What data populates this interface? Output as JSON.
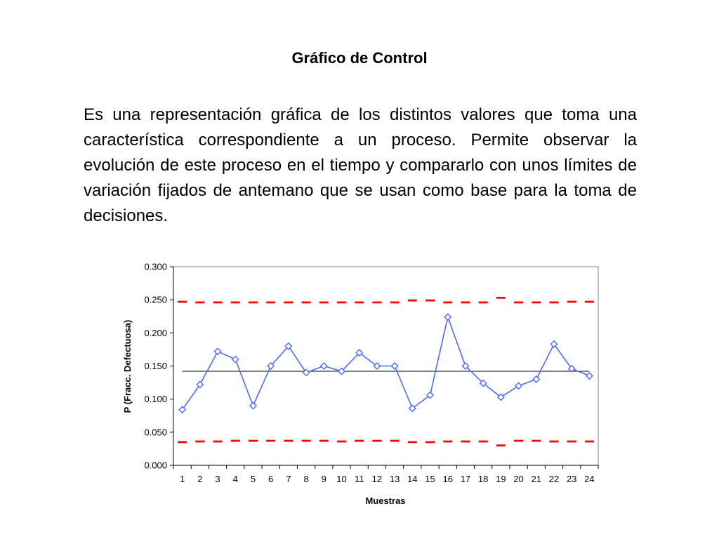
{
  "slide": {
    "title": "Gráfico de Control",
    "body": "Es una representación gráfica de los distintos valores que toma una característica correspondiente a un proceso. Permite observar la evolución de este proceso en el tiempo y compararlo con unos límites de variación fijados de antemano que se usan como base para la toma de decisiones."
  },
  "chart_data": {
    "type": "line",
    "xlabel": "Muestras",
    "ylabel": "P (Fracc. Defectuosa)",
    "x": [
      1,
      2,
      3,
      4,
      5,
      6,
      7,
      8,
      9,
      10,
      11,
      12,
      13,
      14,
      15,
      16,
      17,
      18,
      19,
      20,
      21,
      22,
      23,
      24
    ],
    "ylim": [
      0,
      0.3
    ],
    "yticks": [
      "0.000",
      "0.050",
      "0.100",
      "0.150",
      "0.200",
      "0.250",
      "0.300"
    ],
    "grid": false,
    "legend": "none",
    "series": [
      {
        "values": [
          0.084,
          0.122,
          0.172,
          0.16,
          0.09,
          0.15,
          0.18,
          0.14,
          0.15,
          0.142,
          0.17,
          0.15,
          0.15,
          0.086,
          0.106,
          0.224,
          0.15,
          0.124,
          0.103,
          0.12,
          0.13,
          0.183,
          0.146,
          0.135
        ],
        "color": "#4d6bff"
      }
    ],
    "center_line": {
      "value": 0.142,
      "color": "#000000"
    },
    "upper_limit": {
      "values": [
        0.247,
        0.246,
        0.246,
        0.246,
        0.246,
        0.246,
        0.246,
        0.246,
        0.246,
        0.246,
        0.246,
        0.246,
        0.246,
        0.249,
        0.249,
        0.246,
        0.246,
        0.246,
        0.253,
        0.246,
        0.246,
        0.246,
        0.247,
        0.247
      ],
      "color": "#ff0000"
    },
    "lower_limit": {
      "values": [
        0.035,
        0.036,
        0.036,
        0.037,
        0.037,
        0.037,
        0.037,
        0.037,
        0.037,
        0.036,
        0.037,
        0.037,
        0.037,
        0.035,
        0.035,
        0.036,
        0.036,
        0.036,
        0.03,
        0.037,
        0.037,
        0.036,
        0.036,
        0.036
      ],
      "color": "#ff0000"
    }
  }
}
